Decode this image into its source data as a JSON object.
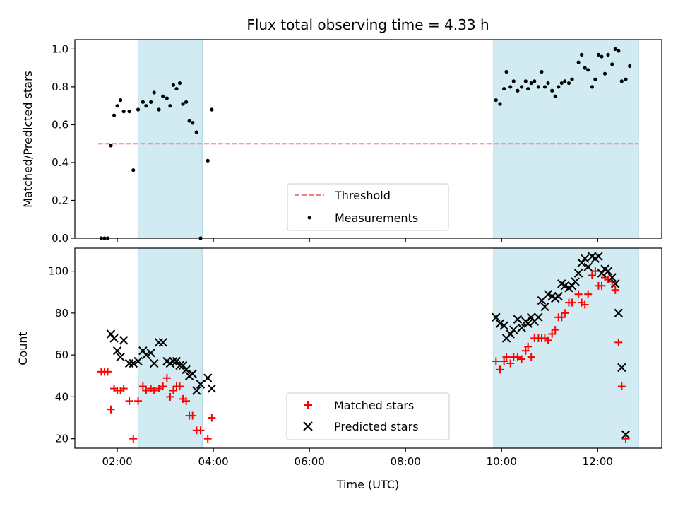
{
  "title": "Flux total observing time = 4.33 h",
  "colors": {
    "window": "#add8e6",
    "threshold": "#f08080",
    "measurement": "#000000",
    "matched": "#ff0000",
    "predicted": "#000000"
  },
  "chart_data": [
    {
      "type": "scatter",
      "panel": "top",
      "ylabel": "Matched/Predicted stars",
      "xlim": [
        "01:07",
        "13:20"
      ],
      "ylim": [
        0,
        1.05
      ],
      "yticks": [
        0.0,
        0.2,
        0.4,
        0.6,
        0.8,
        1.0
      ],
      "ytick_labels": [
        "0.0",
        "0.2",
        "0.4",
        "0.6",
        "0.8",
        "1.0"
      ],
      "legend_position": "lower-center",
      "shaded_windows": [
        [
          "02:26",
          "03:46"
        ],
        [
          "09:50",
          "12:51"
        ]
      ],
      "threshold": {
        "name": "Threshold",
        "y": 0.5,
        "x": [
          "01:36",
          "12:51"
        ]
      },
      "series": [
        {
          "name": "Measurements",
          "points": [
            [
              "01:40",
              0.0
            ],
            [
              "01:44",
              0.0
            ],
            [
              "01:48",
              0.0
            ],
            [
              "01:52",
              0.49
            ],
            [
              "01:56",
              0.65
            ],
            [
              "02:00",
              0.7
            ],
            [
              "02:04",
              0.73
            ],
            [
              "02:08",
              0.67
            ],
            [
              "02:15",
              0.67
            ],
            [
              "02:20",
              0.36
            ],
            [
              "02:26",
              0.68
            ],
            [
              "02:32",
              0.72
            ],
            [
              "02:36",
              0.7
            ],
            [
              "02:42",
              0.72
            ],
            [
              "02:46",
              0.77
            ],
            [
              "02:52",
              0.68
            ],
            [
              "02:57",
              0.75
            ],
            [
              "03:02",
              0.74
            ],
            [
              "03:06",
              0.7
            ],
            [
              "03:10",
              0.81
            ],
            [
              "03:14",
              0.79
            ],
            [
              "03:18",
              0.82
            ],
            [
              "03:22",
              0.71
            ],
            [
              "03:26",
              0.72
            ],
            [
              "03:30",
              0.62
            ],
            [
              "03:34",
              0.61
            ],
            [
              "03:39",
              0.56
            ],
            [
              "03:44",
              0.0
            ],
            [
              "03:53",
              0.41
            ],
            [
              "03:58",
              0.68
            ],
            [
              "09:53",
              0.73
            ],
            [
              "09:58",
              0.71
            ],
            [
              "10:03",
              0.79
            ],
            [
              "10:06",
              0.88
            ],
            [
              "10:11",
              0.8
            ],
            [
              "10:15",
              0.83
            ],
            [
              "10:20",
              0.78
            ],
            [
              "10:25",
              0.8
            ],
            [
              "10:30",
              0.83
            ],
            [
              "10:33",
              0.79
            ],
            [
              "10:37",
              0.82
            ],
            [
              "10:41",
              0.83
            ],
            [
              "10:46",
              0.8
            ],
            [
              "10:50",
              0.88
            ],
            [
              "10:54",
              0.8
            ],
            [
              "10:58",
              0.82
            ],
            [
              "11:03",
              0.78
            ],
            [
              "11:07",
              0.75
            ],
            [
              "11:11",
              0.8
            ],
            [
              "11:15",
              0.82
            ],
            [
              "11:19",
              0.83
            ],
            [
              "11:24",
              0.82
            ],
            [
              "11:28",
              0.84
            ],
            [
              "11:36",
              0.93
            ],
            [
              "11:40",
              0.97
            ],
            [
              "11:44",
              0.9
            ],
            [
              "11:48",
              0.89
            ],
            [
              "11:53",
              0.8
            ],
            [
              "11:57",
              0.84
            ],
            [
              "12:01",
              0.97
            ],
            [
              "12:05",
              0.96
            ],
            [
              "12:09",
              0.87
            ],
            [
              "12:13",
              0.97
            ],
            [
              "12:18",
              0.92
            ],
            [
              "12:22",
              1.0
            ],
            [
              "12:26",
              0.99
            ],
            [
              "12:30",
              0.83
            ],
            [
              "12:35",
              0.84
            ],
            [
              "12:40",
              0.91
            ]
          ]
        }
      ]
    },
    {
      "type": "scatter",
      "panel": "bottom",
      "xlabel": "Time (UTC)",
      "ylabel": "Count",
      "xlim": [
        "01:07",
        "13:20"
      ],
      "ylim": [
        15.5,
        111
      ],
      "xticks": [
        "02:00",
        "04:00",
        "06:00",
        "08:00",
        "10:00",
        "12:00"
      ],
      "xtick_labels": [
        "02:00",
        "04:00",
        "06:00",
        "08:00",
        "10:00",
        "12:00"
      ],
      "yticks": [
        20,
        40,
        60,
        80,
        100
      ],
      "ytick_labels": [
        "20",
        "40",
        "60",
        "80",
        "100"
      ],
      "legend_position": "lower-center",
      "shaded_windows": [
        [
          "02:26",
          "03:46"
        ],
        [
          "09:50",
          "12:51"
        ]
      ],
      "series": [
        {
          "name": "Matched stars",
          "marker": "plus",
          "points": [
            [
              "01:40",
              52
            ],
            [
              "01:44",
              52
            ],
            [
              "01:48",
              52
            ],
            [
              "01:52",
              34
            ],
            [
              "01:56",
              44
            ],
            [
              "02:00",
              43
            ],
            [
              "02:04",
              43
            ],
            [
              "02:08",
              44
            ],
            [
              "02:15",
              38
            ],
            [
              "02:20",
              20
            ],
            [
              "02:26",
              38
            ],
            [
              "02:32",
              45
            ],
            [
              "02:36",
              43
            ],
            [
              "02:42",
              44
            ],
            [
              "02:46",
              43
            ],
            [
              "02:52",
              44
            ],
            [
              "02:57",
              45
            ],
            [
              "03:02",
              49
            ],
            [
              "03:06",
              40
            ],
            [
              "03:10",
              43
            ],
            [
              "03:14",
              45
            ],
            [
              "03:18",
              45
            ],
            [
              "03:22",
              39
            ],
            [
              "03:26",
              38
            ],
            [
              "03:30",
              31
            ],
            [
              "03:34",
              31
            ],
            [
              "03:39",
              24
            ],
            [
              "03:44",
              24
            ],
            [
              "03:53",
              20
            ],
            [
              "03:58",
              30
            ],
            [
              "09:53",
              57
            ],
            [
              "09:58",
              53
            ],
            [
              "10:03",
              57
            ],
            [
              "10:06",
              59
            ],
            [
              "10:11",
              56
            ],
            [
              "10:15",
              59
            ],
            [
              "10:20",
              59
            ],
            [
              "10:25",
              58
            ],
            [
              "10:30",
              62
            ],
            [
              "10:33",
              64
            ],
            [
              "10:37",
              59
            ],
            [
              "10:41",
              68
            ],
            [
              "10:46",
              68
            ],
            [
              "10:50",
              68
            ],
            [
              "10:54",
              68
            ],
            [
              "10:58",
              67
            ],
            [
              "11:03",
              70
            ],
            [
              "11:07",
              72
            ],
            [
              "11:11",
              78
            ],
            [
              "11:15",
              78
            ],
            [
              "11:19",
              80
            ],
            [
              "11:24",
              85
            ],
            [
              "11:28",
              85
            ],
            [
              "11:36",
              89
            ],
            [
              "11:40",
              85
            ],
            [
              "11:44",
              84
            ],
            [
              "11:48",
              89
            ],
            [
              "11:53",
              98
            ],
            [
              "11:57",
              100
            ],
            [
              "12:01",
              93
            ],
            [
              "12:05",
              93
            ],
            [
              "12:09",
              97
            ],
            [
              "12:13",
              96
            ],
            [
              "12:18",
              95
            ],
            [
              "12:22",
              91
            ],
            [
              "12:26",
              66
            ],
            [
              "12:30",
              45
            ],
            [
              "12:35",
              20
            ]
          ]
        },
        {
          "name": "Predicted stars",
          "marker": "x",
          "points": [
            [
              "01:52",
              70
            ],
            [
              "01:56",
              68
            ],
            [
              "02:00",
              62
            ],
            [
              "02:04",
              59
            ],
            [
              "02:08",
              67
            ],
            [
              "02:15",
              56
            ],
            [
              "02:20",
              56
            ],
            [
              "02:26",
              57
            ],
            [
              "02:32",
              62
            ],
            [
              "02:36",
              60
            ],
            [
              "02:42",
              61
            ],
            [
              "02:46",
              56
            ],
            [
              "02:52",
              66
            ],
            [
              "02:57",
              66
            ],
            [
              "03:02",
              57
            ],
            [
              "03:06",
              56
            ],
            [
              "03:10",
              57
            ],
            [
              "03:14",
              57
            ],
            [
              "03:18",
              55
            ],
            [
              "03:22",
              55
            ],
            [
              "03:26",
              53
            ],
            [
              "03:30",
              50
            ],
            [
              "03:34",
              51
            ],
            [
              "03:39",
              43
            ],
            [
              "03:44",
              46
            ],
            [
              "03:53",
              49
            ],
            [
              "03:58",
              44
            ],
            [
              "09:53",
              78
            ],
            [
              "09:58",
              75
            ],
            [
              "10:03",
              74
            ],
            [
              "10:06",
              68
            ],
            [
              "10:11",
              70
            ],
            [
              "10:15",
              72
            ],
            [
              "10:20",
              77
            ],
            [
              "10:25",
              73
            ],
            [
              "10:30",
              76
            ],
            [
              "10:33",
              75
            ],
            [
              "10:37",
              78
            ],
            [
              "10:41",
              76
            ],
            [
              "10:46",
              78
            ],
            [
              "10:50",
              86
            ],
            [
              "10:54",
              83
            ],
            [
              "10:58",
              89
            ],
            [
              "11:03",
              88
            ],
            [
              "11:07",
              87
            ],
            [
              "11:11",
              88
            ],
            [
              "11:15",
              94
            ],
            [
              "11:19",
              93
            ],
            [
              "11:24",
              92
            ],
            [
              "11:28",
              93
            ],
            [
              "11:32",
              95
            ],
            [
              "11:36",
              99
            ],
            [
              "11:40",
              104
            ],
            [
              "11:44",
              106
            ],
            [
              "11:48",
              102
            ],
            [
              "11:53",
              107
            ],
            [
              "11:57",
              106
            ],
            [
              "12:01",
              107
            ],
            [
              "12:05",
              99
            ],
            [
              "12:09",
              101
            ],
            [
              "12:13",
              100
            ],
            [
              "12:18",
              97
            ],
            [
              "12:22",
              94
            ],
            [
              "12:26",
              80
            ],
            [
              "12:30",
              54
            ],
            [
              "12:35",
              22
            ]
          ]
        }
      ]
    }
  ]
}
